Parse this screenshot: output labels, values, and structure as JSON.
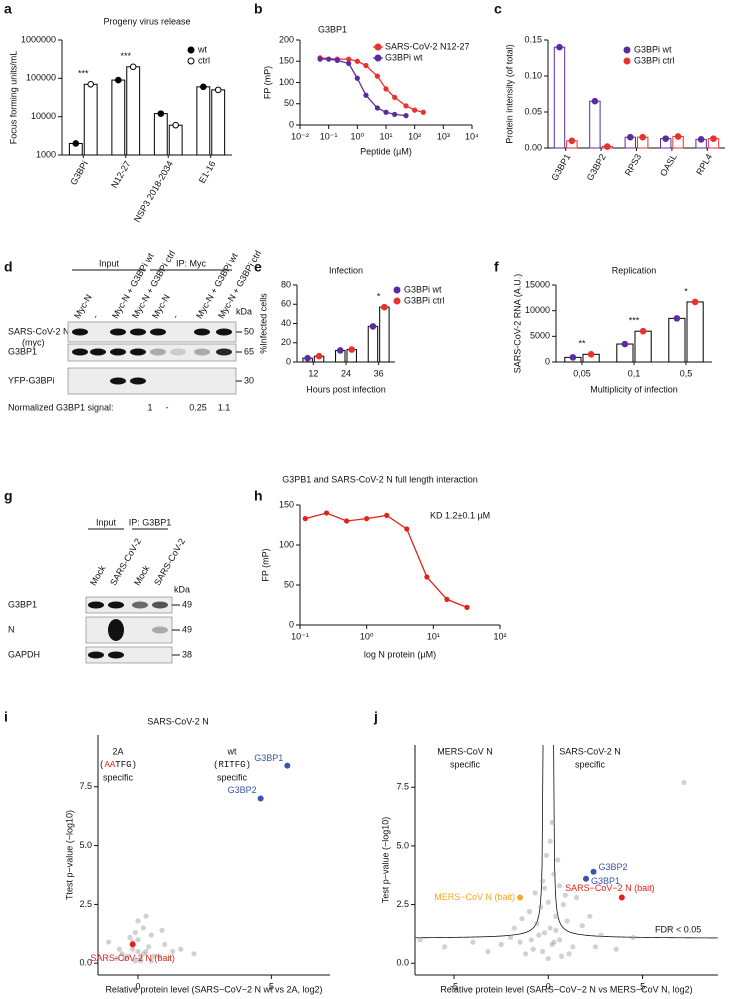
{
  "chart_data": [
    {
      "type": "bar",
      "panel": "a",
      "title": "Progeny virus release",
      "ylabel": "Focus forming units/mL",
      "categories": [
        "G3BPi",
        "N12-27",
        "NSP3 2018-2034",
        "E1-16"
      ],
      "series": [
        {
          "name": "wt",
          "color": "#000000",
          "open": false,
          "values": [
            2000,
            90000,
            12000,
            60000
          ]
        },
        {
          "name": "ctrl",
          "color": "#000000",
          "open": true,
          "values": [
            70000,
            200000,
            6000,
            50000
          ]
        }
      ],
      "significance": [
        "***",
        "***",
        null,
        null
      ],
      "bar_outline": "#000000",
      "ylog": true,
      "ylim": [
        1000,
        1000000
      ],
      "yticks": [
        1000,
        10000,
        100000,
        1000000
      ]
    },
    {
      "type": "line",
      "panel": "b",
      "title": "G3BP1",
      "ylabel": "FP (mP)",
      "xlabel": "Peptide (µM)",
      "xlog": true,
      "series": [
        {
          "name": "SARS-CoV-2 N12-27",
          "color": "#e8322b",
          "x": [
            0.05,
            0.2,
            0.5,
            1,
            2,
            5,
            10,
            20,
            50,
            100,
            200
          ],
          "values": [
            158,
            155,
            155,
            150,
            140,
            115,
            85,
            65,
            45,
            35,
            30
          ]
        },
        {
          "name": "G3BPi wt",
          "color": "#5b2c9f",
          "x": [
            0.05,
            0.1,
            0.2,
            0.5,
            1,
            2,
            5,
            10,
            20,
            50
          ],
          "values": [
            155,
            155,
            152,
            145,
            110,
            70,
            40,
            30,
            25,
            22
          ]
        }
      ],
      "xlim": [
        0.01,
        10000
      ],
      "xticks": [
        {
          "value": 0.01,
          "label": "10⁻²"
        },
        {
          "value": 0.1,
          "label": "10⁻¹"
        },
        {
          "value": 1,
          "label": "10⁰"
        },
        {
          "value": 10,
          "label": "10¹"
        },
        {
          "value": 100,
          "label": "10²"
        },
        {
          "value": 1000,
          "label": "10³"
        },
        {
          "value": 10000,
          "label": "10⁴"
        }
      ],
      "ylim": [
        0,
        200
      ],
      "yticks": [
        0,
        50,
        100,
        150,
        200
      ]
    },
    {
      "type": "bar",
      "panel": "c",
      "ylabel": "Protein intensity (of total)",
      "categories": [
        "G3BP1",
        "G3BP2",
        "RPS3",
        "OASL",
        "RPL4"
      ],
      "series": [
        {
          "name": "G3BPi wt",
          "color": "#5b2c9f",
          "values": [
            0.14,
            0.065,
            0.015,
            0.013,
            0.012
          ]
        },
        {
          "name": "G3BPi ctrl",
          "color": "#e8322b",
          "values": [
            0.01,
            0.002,
            0.015,
            0.016,
            0.013
          ]
        }
      ],
      "ylim": [
        0,
        0.15
      ],
      "yticks": [
        {
          "value": 0,
          "label": "0.00"
        },
        0.05,
        {
          "value": 0.1,
          "label": "0.10"
        },
        0.15
      ]
    },
    {
      "type": "bar",
      "panel": "e",
      "title": "Infection",
      "ylabel": "%Infected cells",
      "xlabel": "Hours post infection",
      "categories": [
        "12",
        "24",
        "36"
      ],
      "series": [
        {
          "name": "G3BPi wt",
          "color": "#5b2c9f",
          "values": [
            4,
            12,
            37
          ]
        },
        {
          "name": "G3BPi ctrl",
          "color": "#e8322b",
          "values": [
            6,
            13,
            57
          ]
        }
      ],
      "significance": [
        null,
        null,
        "*"
      ],
      "bar_outline": "#000000",
      "ylim": [
        0,
        80
      ],
      "yticks": [
        0,
        20,
        40,
        60,
        80
      ]
    },
    {
      "type": "bar",
      "panel": "f",
      "title": "Replication",
      "ylabel": "SARS-CoV-2 RNA (A.U.)",
      "xlabel": "Multiplicity of infection",
      "categories": [
        "0,05",
        "0,1",
        "0,5"
      ],
      "series": [
        {
          "color": "#5b2c9f",
          "values": [
            900,
            3500,
            8500
          ]
        },
        {
          "color": "#e8322b",
          "values": [
            1500,
            6000,
            11700
          ]
        }
      ],
      "significance": [
        "**",
        "***",
        "*"
      ],
      "bar_outline": "#000000",
      "ylim": [
        0,
        15000
      ],
      "yticks": [
        0,
        5000,
        10000,
        15000
      ]
    },
    {
      "type": "line",
      "panel": "h",
      "title": "G3PB1 and SARS-CoV-2 N full length interaction",
      "annotation": "KD 1.2±0.1 µM",
      "ylabel": "FP (mP)",
      "xlabel": "log N protein (µM)",
      "xlog": true,
      "color": "#e2231a",
      "x": [
        0.12,
        0.25,
        0.5,
        1,
        2,
        4,
        8,
        16,
        32
      ],
      "values": [
        133,
        140,
        130,
        133,
        137,
        120,
        60,
        32,
        22
      ],
      "xlim": [
        0.1,
        100
      ],
      "xticks": [
        {
          "value": 0.1,
          "label": "10⁻¹"
        },
        {
          "value": 1,
          "label": "10⁰"
        },
        {
          "value": 10,
          "label": "10¹"
        },
        {
          "value": 100,
          "label": "10²"
        }
      ],
      "ylim": [
        0,
        150
      ],
      "yticks": [
        0,
        50,
        100,
        150
      ]
    },
    {
      "type": "scatter",
      "panel": "i",
      "title": "SARS-CoV-2 N",
      "left_header": {
        "name": "2A",
        "motif": [
          "(",
          "AA",
          "TFG)"
        ],
        "note": "specific"
      },
      "right_header": {
        "name": "wt",
        "motif": [
          "(RITFG)"
        ],
        "note": "specific"
      },
      "xlabel": "Relative protein level (SARS−CoV−2 N wt vs 2A, log2)",
      "ylabel": "Ttest p−value (−log10)",
      "color": "#9a9a9a",
      "x": [
        -0.4,
        -0.2,
        0,
        0.1,
        0.3,
        0.5,
        -0.6,
        0.8,
        -0.8,
        1.0,
        0.2,
        -0.1,
        0.4,
        -0.3,
        0.6,
        1.3,
        -1.1,
        0.0,
        0.2,
        -0.5,
        0.9,
        1.6,
        -0.2,
        0.1,
        0.3,
        2.1,
        -0.7,
        0.5,
        0.0,
        -0.1
      ],
      "values": [
        0.3,
        0.6,
        1.0,
        0.2,
        0.5,
        1.2,
        0.4,
        0.3,
        0.2,
        0.8,
        1.5,
        0.1,
        0.7,
        1.1,
        0.3,
        0.5,
        0.9,
        1.8,
        0.4,
        0.2,
        1.4,
        0.6,
        0.9,
        0.1,
        2.0,
        0.4,
        0.6,
        0.1,
        0.5,
        1.3
      ],
      "highlights": [
        {
          "label": "G3BP1",
          "x": 5.6,
          "y": 8.4,
          "color": "#3a53b0"
        },
        {
          "label": "G3BP2",
          "x": 4.6,
          "y": 7.0,
          "color": "#3a53b0"
        },
        {
          "label": "SARS-CoV-2 N (bait)",
          "x": -0.2,
          "y": 0.8,
          "color": "#e2231a"
        }
      ],
      "xlim": [
        -1.5,
        7.2
      ],
      "xticks": [
        0,
        5
      ],
      "ylim": [
        -0.5,
        9.7
      ],
      "yticks": [
        {
          "value": 0,
          "label": "0.0"
        },
        2.5,
        {
          "value": 5,
          "label": "5.0"
        },
        7.5
      ]
    },
    {
      "type": "scatter",
      "panel": "j",
      "left_header": {
        "name": "MERS-CoV N",
        "note": "specific"
      },
      "right_header": {
        "name": "SARS-CoV-2 N",
        "note": "specific"
      },
      "threshold_label": "FDR < 0.05",
      "xlabel": "Relative protein level (SARS−CoV−2 N vs MERS−CoV N, log2)",
      "ylabel": "Test p−value (−log10)",
      "color": "#9a9a9a",
      "x": [
        -0.3,
        0.2,
        0.1,
        -0.5,
        0.4,
        -0.8,
        0.6,
        -1.2,
        1.0,
        -1.5,
        1.3,
        0.0,
        -0.2,
        0.3,
        -0.4,
        0.5,
        -0.6,
        0.7,
        -1.0,
        0.9,
        -2.0,
        1.8,
        -2.5,
        2.2,
        -3.2,
        2.8,
        -4.0,
        3.6,
        -5.5,
        4.5,
        0.1,
        -0.1,
        0.2,
        -0.3,
        0.0,
        0.4,
        -0.7,
        0.8,
        -1.4,
        1.5,
        0.3,
        -0.2,
        1.1,
        -0.9,
        0.6,
        2.5,
        -1.8,
        6.5,
        7.2,
        -6.8
      ],
      "values": [
        0.5,
        0.8,
        1.5,
        1.2,
        2.0,
        0.6,
        1.0,
        0.4,
        1.8,
        0.9,
        0.7,
        2.6,
        3.2,
        3.8,
        2.4,
        4.4,
        1.7,
        0.3,
        2.2,
        2.9,
        1.1,
        1.6,
        0.8,
        2.0,
        0.5,
        1.2,
        0.9,
        0.6,
        0.7,
        1.1,
        5.2,
        4.6,
        6.0,
        3.5,
        0.2,
        1.4,
        3.0,
        2.5,
        1.9,
        2.8,
        0.9,
        1.3,
        0.4,
        1.0,
        3.3,
        0.7,
        1.5,
        1.5,
        7.7,
        1.0
      ],
      "highlights": [
        {
          "label": "G3BP2",
          "x": 2.4,
          "y": 3.9,
          "color": "#3a53b0"
        },
        {
          "label": "G3BP1",
          "x": 2.0,
          "y": 3.6,
          "color": "#3a53b0"
        },
        {
          "label": "SARS−CoV−2 N (bait)",
          "x": 3.9,
          "y": 2.8,
          "color": "#e2231a"
        },
        {
          "label": "MERS−CoV N (bait)",
          "x": -1.5,
          "y": 2.8,
          "color": "#f5a623"
        }
      ],
      "xlim": [
        -7.07,
        9.0
      ],
      "xticks": [
        -5,
        0,
        5
      ],
      "ylim": [
        -0.5,
        9.3
      ],
      "yticks": [
        {
          "value": 0,
          "label": "0.0"
        },
        2.5,
        {
          "value": 5,
          "label": "5.0"
        },
        7.5
      ]
    }
  ],
  "blots": [
    {
      "panel": "d",
      "groups": [
        "Input",
        "IP: Myc"
      ],
      "lanes": [
        "Myc-N",
        "-",
        "Myc-N + G3BPi wt",
        "Myc-N + G3BPi ctrl",
        "Myc-N",
        "-",
        "Myc-N + G3BPi wt",
        "Myc-N + G3BPi ctrl"
      ],
      "kda_label": "kDa",
      "rows": [
        "SARS-CoV-2 N",
        "G3BP1",
        "YFP-G3BPi"
      ],
      "row_note": "(myc)",
      "markers": [
        "50",
        "65",
        "30"
      ],
      "signal_label": "Normalized G3BP1 signal:",
      "signal": [
        "1",
        "-",
        "0.25",
        "1.1"
      ]
    },
    {
      "panel": "g",
      "groups": [
        "Input",
        "IP: G3BP1"
      ],
      "lanes": [
        "Mock",
        "SARS-CoV-2",
        "Mock",
        "SARS-CoV-2"
      ],
      "kda_label": "kDa",
      "rows": [
        "G3BP1",
        "N",
        "GAPDH"
      ],
      "markers": [
        "49",
        "49",
        "38"
      ]
    }
  ]
}
